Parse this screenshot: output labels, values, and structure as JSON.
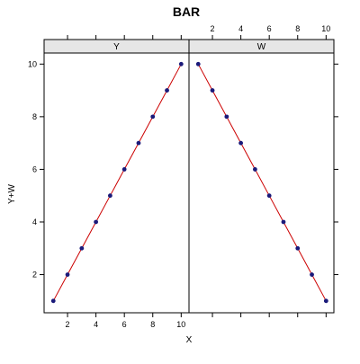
{
  "chart_data": {
    "type": "line",
    "title": "BAR",
    "xlabel": "X",
    "ylabel": "Y+W",
    "xlim": [
      0.35,
      10.55
    ],
    "ylim": [
      0.55,
      10.42
    ],
    "x_ticks": [
      2,
      4,
      6,
      8,
      10
    ],
    "y_ticks": [
      2,
      4,
      6,
      8,
      10
    ],
    "x_tick_labels": [
      "2",
      "4",
      "6",
      "8",
      "10"
    ],
    "y_tick_labels": [
      "2",
      "4",
      "6",
      "8",
      "10"
    ],
    "panels": [
      {
        "name": "Y",
        "strip_label": "Y",
        "x": [
          1,
          2,
          3,
          4,
          5,
          6,
          7,
          8,
          9,
          10
        ],
        "values": [
          1,
          2,
          3,
          4,
          5,
          6,
          7,
          8,
          9,
          10
        ]
      },
      {
        "name": "W",
        "strip_label": "W",
        "x": [
          1,
          2,
          3,
          4,
          5,
          6,
          7,
          8,
          9,
          10
        ],
        "values": [
          10,
          9,
          8,
          7,
          6,
          5,
          4,
          3,
          2,
          1
        ]
      }
    ],
    "colors": {
      "line": "#cc0000",
      "point": "#1a1a7a",
      "strip_fill": "#e6e6e6",
      "axis": "#000000"
    }
  }
}
